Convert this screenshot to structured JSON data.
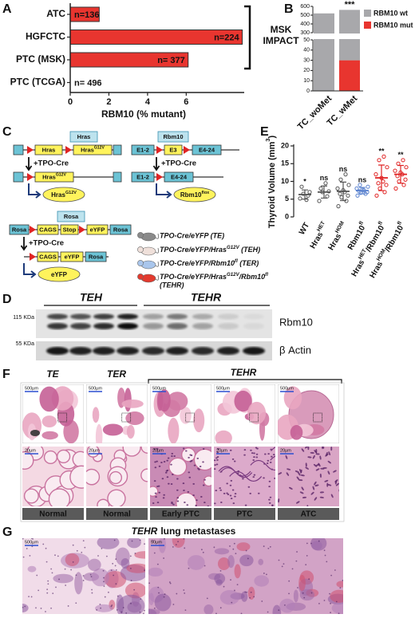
{
  "panel_letters": [
    "A",
    "B",
    "C",
    "D",
    "E",
    "F",
    "G"
  ],
  "chart_data": [
    {
      "type": "bar",
      "orientation": "horizontal",
      "categories": [
        "ATC",
        "HGFCTC",
        "PTC (MSK)",
        "PTC (TCGA)"
      ],
      "values": [
        1.5,
        8.9,
        6.1,
        0
      ],
      "n_labels": [
        "n=136",
        "n=224",
        "n= 377",
        "n= 496"
      ],
      "color": "#e8352f",
      "xlim": [
        0,
        9
      ],
      "xticks": [
        0,
        2,
        4,
        6
      ],
      "xlabel": "RBM10 (% mutant)",
      "bracket_label": [
        "MSK",
        "IMPACT"
      ]
    },
    {
      "type": "stacked-bar",
      "categories": [
        "TC_woMet",
        "TC_wMet"
      ],
      "series": [
        {
          "name": "RBM10 mut",
          "color": "#e8352f",
          "values": [
            0,
            30
          ]
        },
        {
          "name": "RBM10 wt",
          "color": "#a8a8ab",
          "values": [
            520,
            530
          ]
        }
      ],
      "ylim": [
        0,
        600
      ],
      "axis_break": [
        50,
        300
      ],
      "yticks": [
        0,
        10,
        20,
        30,
        40,
        50,
        300,
        400,
        500,
        600
      ],
      "significance": {
        "category": 1,
        "label": "***"
      }
    },
    {
      "type": "dot-plot",
      "categories": [
        [
          "WT"
        ],
        [
          "Hras",
          "HET"
        ],
        [
          "Hras",
          "HOM"
        ],
        [
          "Rbm10",
          "fl"
        ],
        [
          "Hras",
          "HET",
          "/Rbm10",
          "fl"
        ],
        [
          "Hras",
          "HOM",
          "/Rbm10",
          "fl"
        ]
      ],
      "values": [
        [
          5.2,
          6.0,
          6.5,
          7.0,
          8.5,
          4.8
        ],
        [
          4.5,
          5.8,
          7.0,
          7.2,
          8.0,
          9.5
        ],
        [
          3.0,
          4.5,
          5.5,
          6.0,
          6.5,
          7.0,
          7.5,
          8.0,
          9.0,
          10.5,
          12.0
        ],
        [
          6.0,
          6.5,
          6.8,
          7.0,
          7.2,
          7.5,
          7.8,
          8.0,
          8.5,
          9.0
        ],
        [
          6.0,
          7.0,
          8.0,
          9.0,
          9.5,
          10.0,
          11.0,
          12.0,
          14.0,
          16.0,
          17.0
        ],
        [
          8.0,
          9.0,
          10.0,
          10.5,
          11.5,
          12.0,
          12.5,
          13.0,
          14.0,
          15.0,
          16.0
        ]
      ],
      "means": [
        6.3,
        7.0,
        7.2,
        7.4,
        11.0,
        12.0
      ],
      "sds": [
        1.3,
        1.7,
        2.6,
        0.9,
        3.6,
        2.5
      ],
      "colors": [
        "#555555",
        "#555555",
        "#555555",
        "#5b83cf",
        "#e02424",
        "#e02424"
      ],
      "significance": [
        "*",
        "ns",
        "ns",
        "ns",
        "**",
        "**"
      ],
      "ylabel": [
        "Thyroid Volume (mm",
        "3",
        ")"
      ],
      "ylim": [
        0,
        20
      ],
      "yticks": [
        0,
        5,
        10,
        15,
        20
      ]
    }
  ],
  "diagram": {
    "hras": {
      "title": "Hras",
      "top_boxes": [
        "Hras",
        [
          "Hras",
          "G12V"
        ]
      ],
      "step": "+TPO-Cre",
      "result": [
        "Hras",
        "G12V"
      ],
      "product": [
        "Hras",
        "G12V"
      ]
    },
    "rbm10": {
      "title": "Rbm10",
      "top_boxes": [
        "E1-2",
        "E3",
        "E4-24"
      ],
      "step": "+TPO-Cre",
      "result_boxes": [
        "E1-2",
        "E4-24"
      ],
      "product": [
        "Rbm10",
        "flox"
      ]
    },
    "rosa": {
      "title": "Rosa",
      "top_boxes": [
        "Rosa",
        "CAGS",
        "Stop",
        "eYFP",
        "Rosa"
      ],
      "step": "+TPO-Cre",
      "result_boxes": [
        "CAGS",
        "eYFP",
        "Rosa"
      ],
      "product": "eYFP"
    },
    "mice": [
      {
        "color": "#8a8a8a",
        "lines": [
          "TPO-Cre/eYFP (TE)"
        ]
      },
      {
        "color": "#efe0da",
        "lines": [
          [
            "TPO-Cre/eYFP/Hras",
            "G12V",
            " (TEH)"
          ]
        ]
      },
      {
        "color": "#a9c6ec",
        "lines": [
          [
            "TPO-Cre/eYFP/Rbm10",
            "fl",
            " (TER)"
          ]
        ]
      },
      {
        "color": "#e33a2e",
        "lines": [
          [
            "TPO-Cre/eYFP/Hras",
            "G12V",
            "/Rbm10",
            "fl"
          ],
          "(TEHR)"
        ]
      }
    ]
  },
  "blot": {
    "groups": [
      "TEH",
      "TEHR"
    ],
    "markers": [
      "115 KDa",
      "55 KDa"
    ],
    "proteins": [
      "Rbm10",
      "β Actin"
    ]
  },
  "histology": {
    "groups": [
      "TE",
      "TER",
      "TEHR"
    ],
    "tiles": [
      {
        "scale_top": "500µm",
        "scale_bottom": "20µm",
        "label": "Normal"
      },
      {
        "scale_top": "500µm",
        "scale_bottom": "20µm",
        "label": "Normal"
      },
      {
        "scale_top": "500µm",
        "scale_bottom": "20µm",
        "label": "Early PTC"
      },
      {
        "scale_top": "500µm",
        "scale_bottom": "20µm",
        "label": "PTC"
      },
      {
        "scale_top": "500µm",
        "scale_bottom": "20µm",
        "label": "ATC"
      }
    ]
  },
  "metastases": {
    "title": [
      "TEHR",
      "lung metastases"
    ],
    "scales": [
      "500µm",
      "50µm"
    ]
  }
}
